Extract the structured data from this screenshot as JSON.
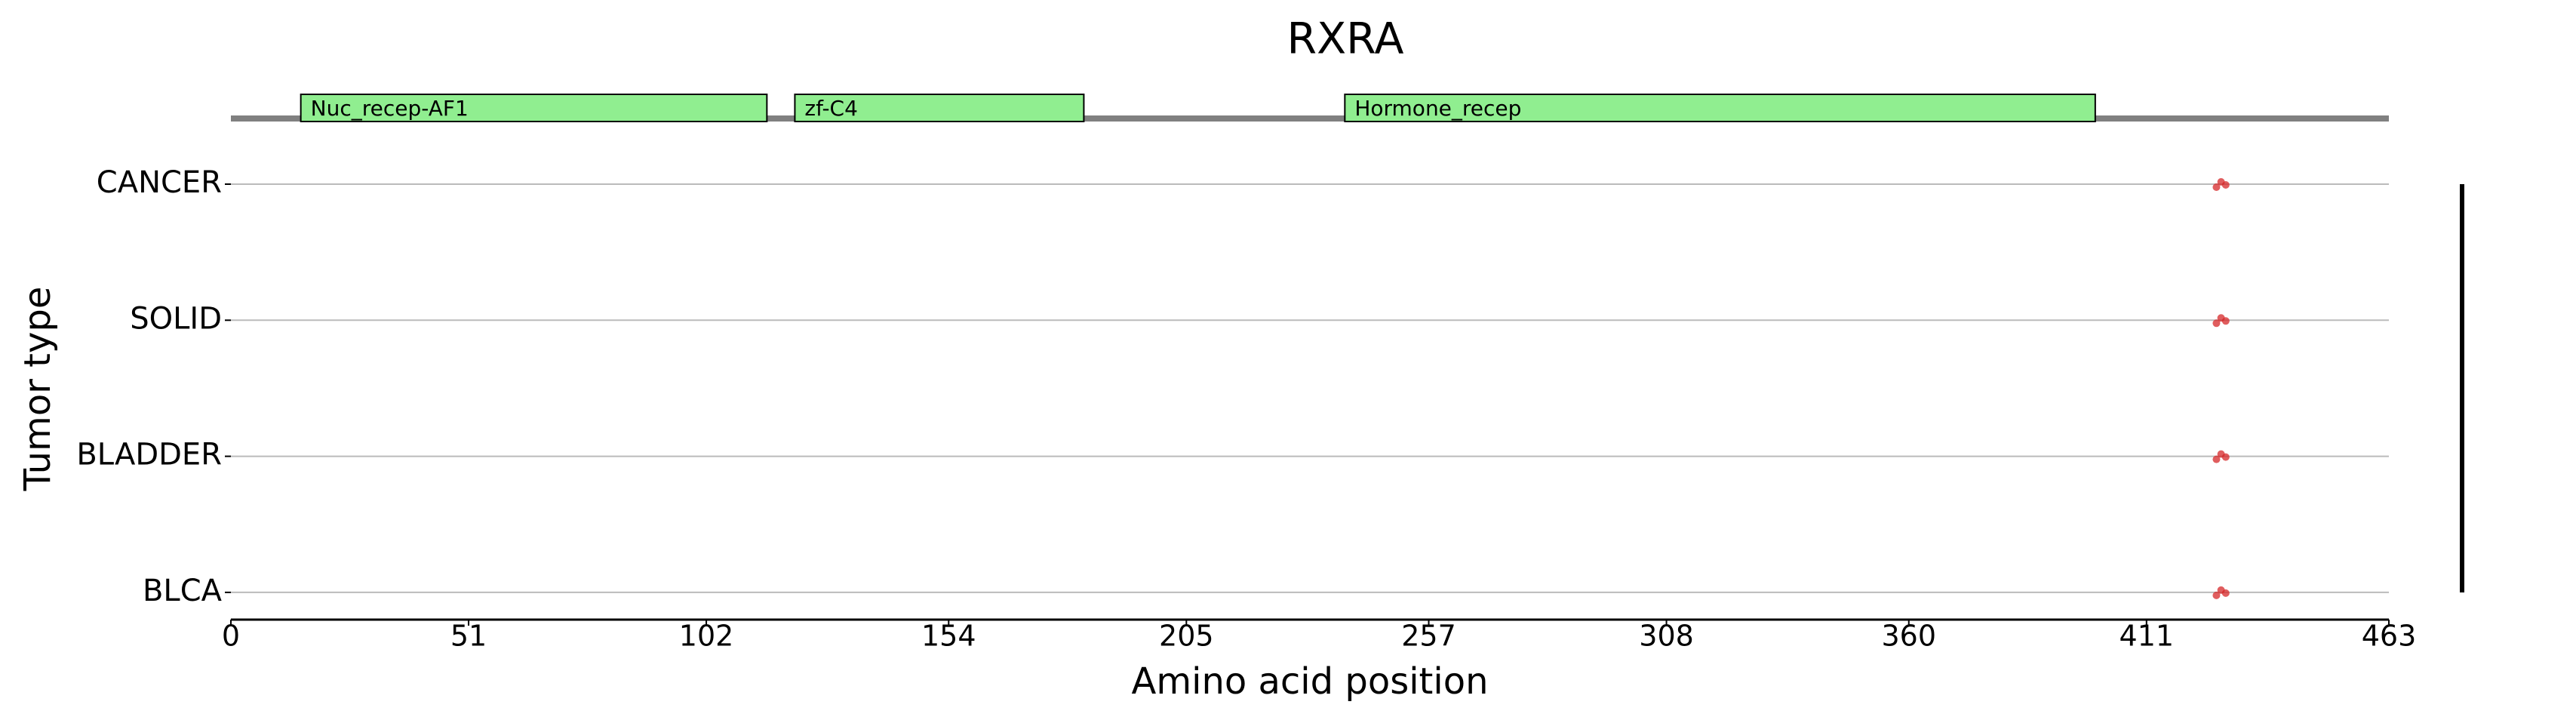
{
  "chart_data": {
    "type": "lollipop",
    "title": "RXRA",
    "xlabel": "Amino acid position",
    "ylabel": "Tumor type",
    "categories": [
      "CANCER",
      "SOLID",
      "BLADDER",
      "BLCA"
    ],
    "points": [
      [
        426,
        427,
        428
      ],
      [
        426,
        427,
        428
      ],
      [
        426,
        427,
        428
      ],
      [
        426,
        427,
        428
      ]
    ],
    "point_color": "#d62728",
    "xlim": [
      0,
      463
    ],
    "xticks": [
      0,
      51,
      102,
      154,
      205,
      257,
      308,
      360,
      411,
      463
    ],
    "domains": [
      {
        "name": "Nuc_recep-AF1",
        "start": 15,
        "end": 115
      },
      {
        "name": "zf-C4",
        "start": 121,
        "end": 183
      },
      {
        "name": "Hormone_recep",
        "start": 239,
        "end": 400
      }
    ],
    "domain_color": "#90ee90",
    "grid": true
  }
}
